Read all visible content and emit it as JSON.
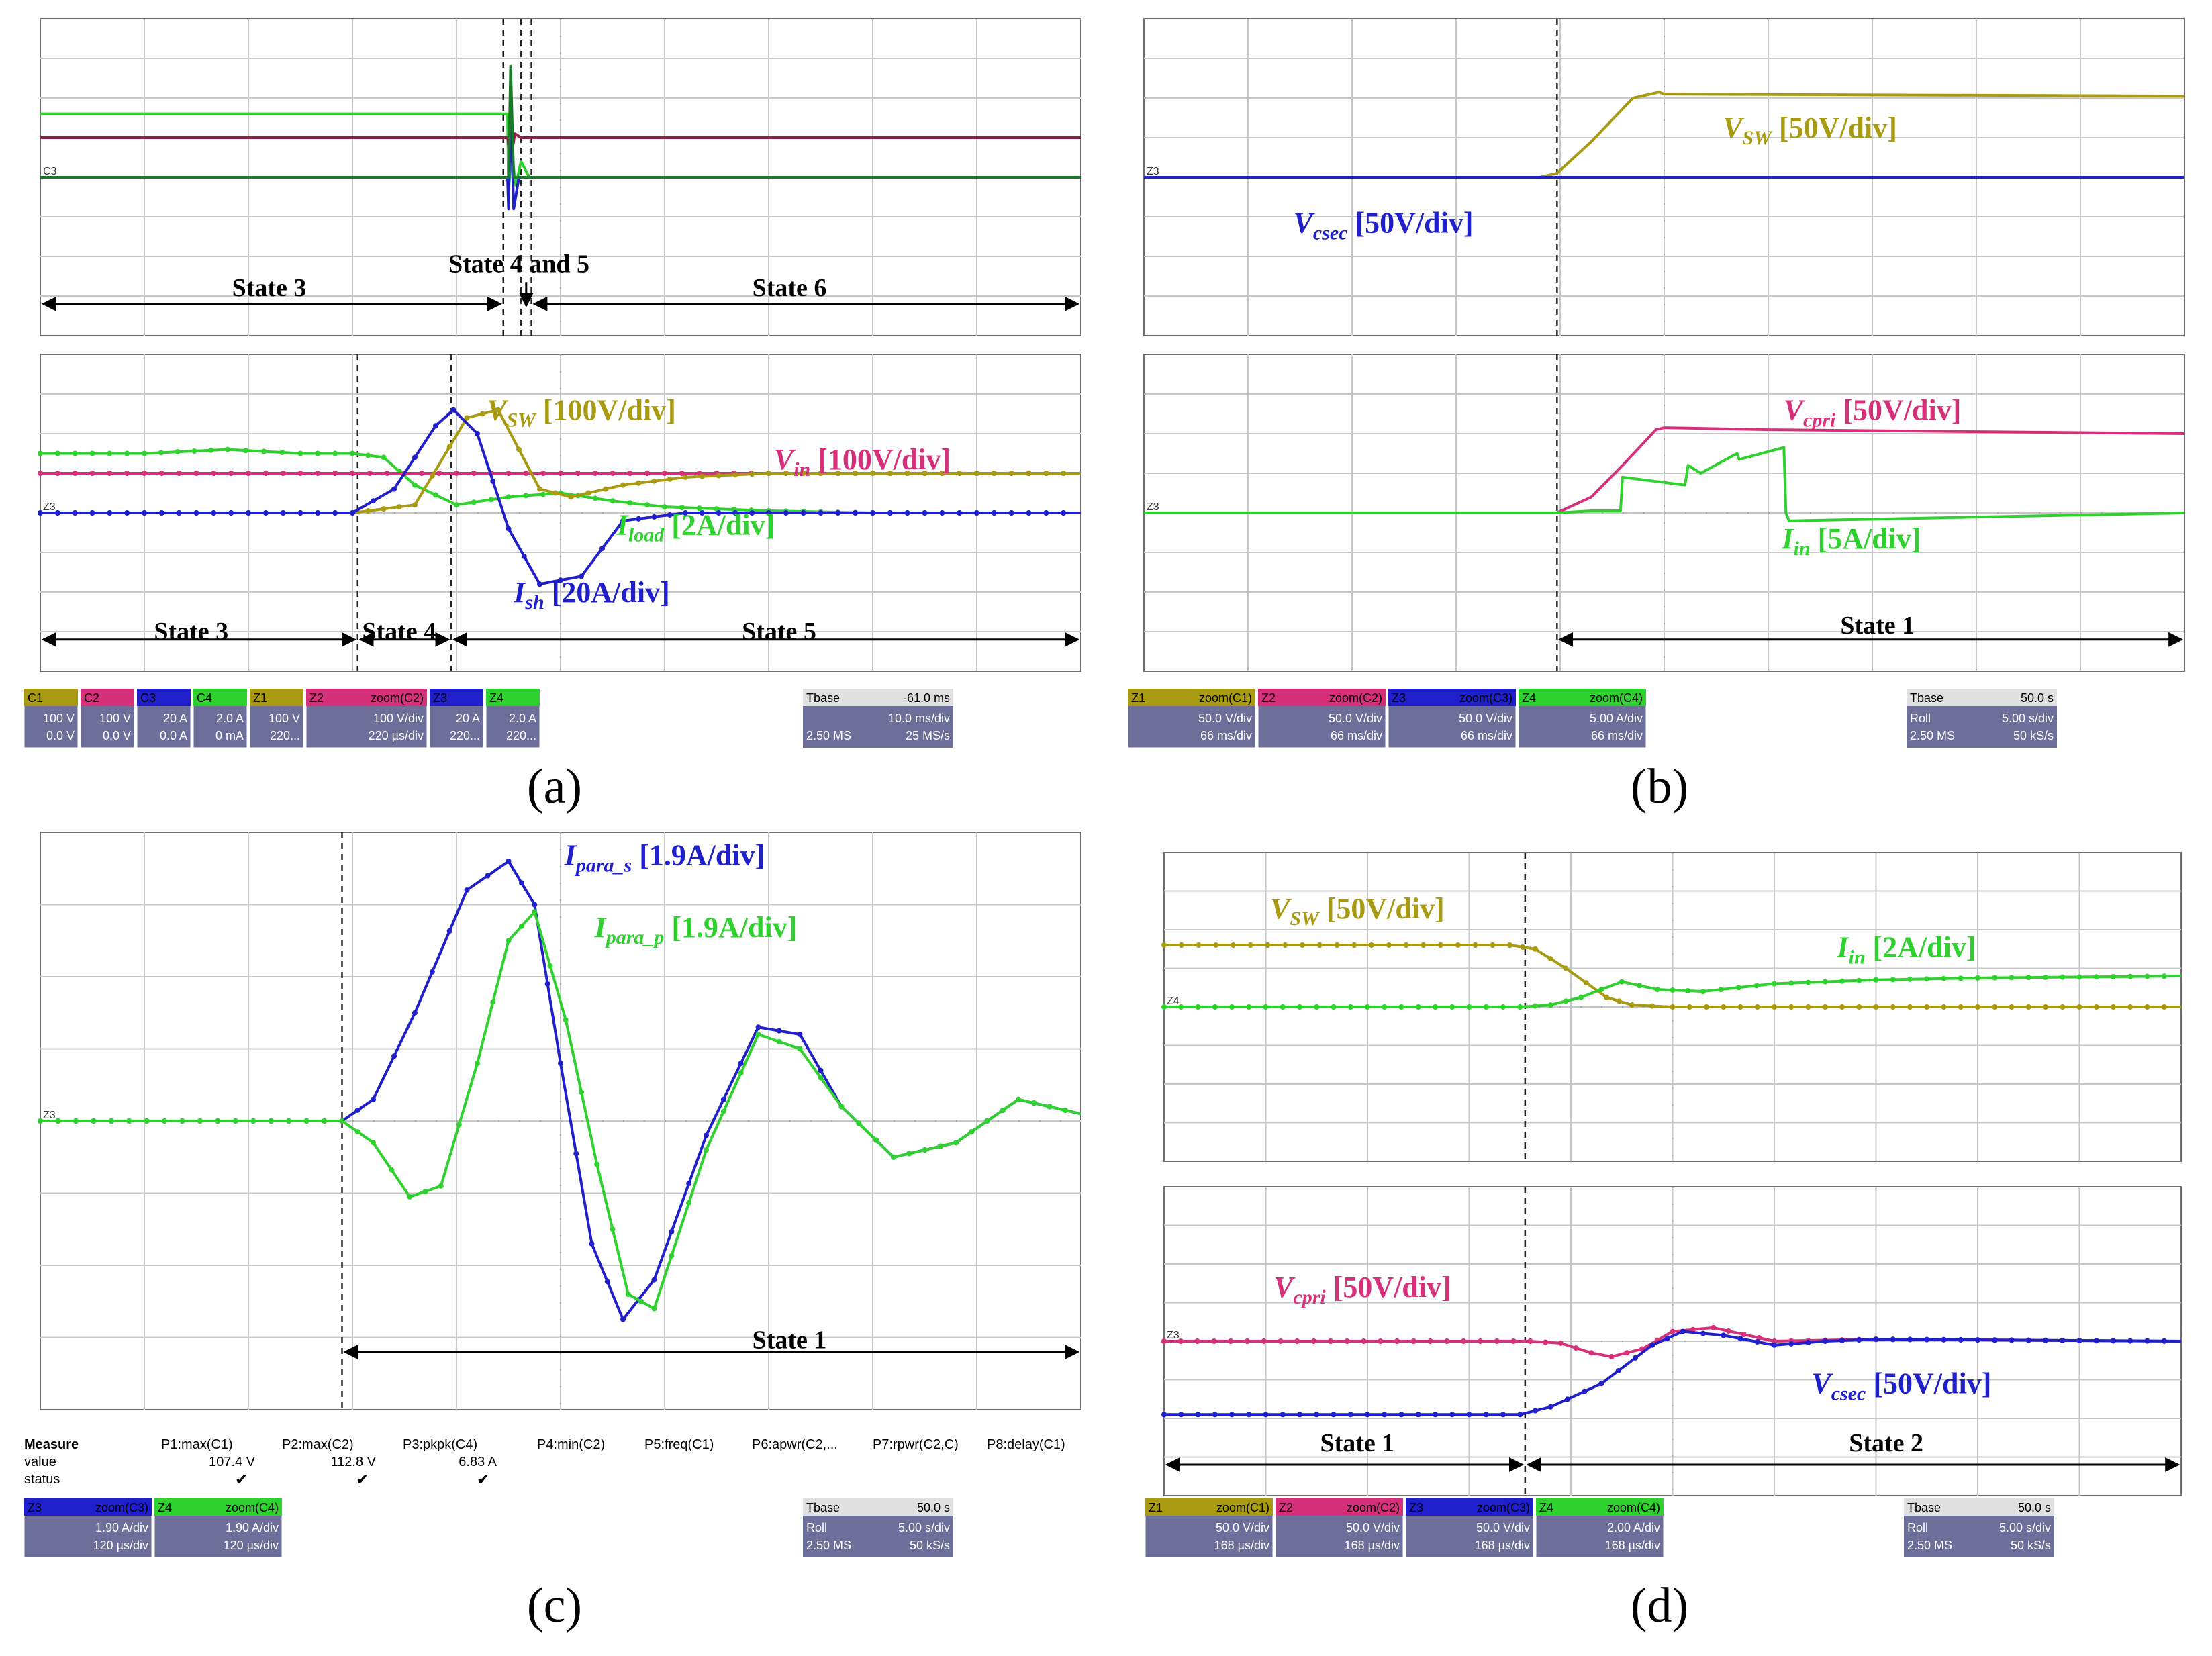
{
  "figure": {
    "captions": [
      "(a)",
      "(b)",
      "(c)",
      "(d)"
    ]
  },
  "colors": {
    "olive": "#a89b12",
    "pink": "#d6307a",
    "navy": "#1f1fcc",
    "green": "#2ed12e",
    "maroon": "#8b2244",
    "darkgreen": "#1a7a2a",
    "grid": "#c7c7c7"
  },
  "chart_data": [
    {
      "id": "a_top",
      "panel": "a",
      "type": "line",
      "xlim": [
        0,
        10
      ],
      "ylim": [
        -4,
        4
      ],
      "series": [
        {
          "name": "green",
          "color": "#2ed12e",
          "x": [
            0,
            4.49,
            4.5,
            4.53,
            4.57,
            4.62,
            4.7,
            10
          ],
          "y": [
            1.6,
            1.6,
            -0.3,
            0.6,
            -0.2,
            0.4,
            0,
            0
          ]
        },
        {
          "name": "maroon",
          "color": "#8b2244",
          "x": [
            0,
            4.49,
            4.52,
            4.56,
            4.62,
            10
          ],
          "y": [
            1,
            1,
            0.4,
            1.1,
            1,
            1
          ]
        },
        {
          "name": "navy",
          "color": "#1f1fcc",
          "x": [
            0,
            4.49,
            4.5,
            4.52,
            4.55,
            4.6,
            10
          ],
          "y": [
            0,
            0,
            -0.8,
            2,
            -0.8,
            0,
            0
          ]
        },
        {
          "name": "darkgreen",
          "color": "#1a7a2a",
          "x": [
            0,
            4.5,
            4.52,
            4.55,
            10
          ],
          "y": [
            0,
            0,
            2.8,
            0,
            0
          ]
        }
      ],
      "vlines": [
        4.45,
        4.62,
        4.72
      ],
      "ground_label": "C3",
      "annotations": [
        {
          "text": "State 3",
          "x": 2.2,
          "y": -3
        },
        {
          "text": "State 4 and 5",
          "x": 4.6,
          "y": -2.4
        },
        {
          "text": "State 6",
          "x": 7.2,
          "y": -3
        }
      ],
      "state_arrows": [
        [
          0,
          4.45
        ],
        [
          4.72,
          10
        ]
      ]
    },
    {
      "id": "a_bot",
      "panel": "a",
      "type": "line",
      "xlim": [
        0,
        10
      ],
      "ylim": [
        -4,
        4
      ],
      "series": [
        {
          "name": "I_load",
          "color": "#2ed12e",
          "x": [
            0,
            1,
            1.8,
            2.5,
            3,
            3.3,
            3.6,
            4,
            4.5,
            5,
            5.5,
            6,
            7,
            8,
            10
          ],
          "y": [
            1.5,
            1.5,
            1.6,
            1.5,
            1.5,
            1.4,
            0.7,
            0.2,
            0.4,
            0.5,
            0.3,
            0.15,
            0.05,
            0,
            0
          ]
        },
        {
          "name": "V_in",
          "color": "#d6307a",
          "x": [
            0,
            10
          ],
          "y": [
            1,
            1
          ]
        },
        {
          "name": "V_SW",
          "color": "#a89b12",
          "x": [
            0,
            3,
            3.6,
            4.1,
            4.4,
            4.8,
            5.1,
            5.6,
            6.2,
            7,
            8,
            10
          ],
          "y": [
            0,
            0,
            0.2,
            2.4,
            2.6,
            0.6,
            0.4,
            0.7,
            0.9,
            1,
            1,
            1
          ]
        },
        {
          "name": "I_sh",
          "color": "#1f1fcc",
          "x": [
            0,
            3,
            3.4,
            3.8,
            3.97,
            4.2,
            4.5,
            4.8,
            5.2,
            5.6,
            6.2,
            7,
            10
          ],
          "y": [
            0,
            0,
            0.6,
            2.2,
            2.6,
            2,
            -0.4,
            -1.8,
            -1.6,
            -0.2,
            0,
            0,
            0
          ]
        }
      ],
      "vlines": [
        3.05,
        3.95
      ],
      "ground_label": "Z3",
      "annotations": [
        {
          "text": "V_SW [100V/div]",
          "main": "V",
          "sub": "SW",
          "rest": " [100V/div]",
          "color": "#a89b12",
          "x": 5.2,
          "y": 2.35
        },
        {
          "text": "V_in [100V/div]",
          "main": "V",
          "sub": "in",
          "rest": " [100V/div]",
          "color": "#d6307a",
          "x": 7.9,
          "y": 1.1
        },
        {
          "text": "I_load [2A/div]",
          "main": "I",
          "sub": "load",
          "rest": " [2A/div]",
          "color": "#2ed12e",
          "x": 6.3,
          "y": -0.55
        },
        {
          "text": "I_sh [20A/div]",
          "main": "I",
          "sub": "sh",
          "rest": " [20A/div]",
          "color": "#1f1fcc",
          "x": 5.3,
          "y": -2.25
        },
        {
          "text": "State 3",
          "x": 1.45,
          "y": -3.2
        },
        {
          "text": "State 4",
          "x": 3.45,
          "y": -3.2
        },
        {
          "text": "State 5",
          "x": 7.1,
          "y": -3.2
        }
      ],
      "state_arrows": [
        [
          0,
          3.05
        ],
        [
          3.05,
          3.95
        ],
        [
          3.95,
          10
        ]
      ]
    },
    {
      "id": "b_top",
      "panel": "b",
      "type": "line",
      "xlim": [
        0,
        10
      ],
      "ylim": [
        -4,
        4
      ],
      "series": [
        {
          "name": "V_SW",
          "color": "#a89b12",
          "x": [
            0,
            3.8,
            3.97,
            4.3,
            4.7,
            4.95,
            5,
            10
          ],
          "y": [
            0,
            0,
            0.1,
            0.9,
            2,
            2.15,
            2.1,
            2.05
          ]
        },
        {
          "name": "V_csec",
          "color": "#1f1fcc",
          "x": [
            0,
            10
          ],
          "y": [
            0,
            0
          ]
        }
      ],
      "vlines": [
        3.97
      ],
      "ground_label": "Z3",
      "annotations": [
        {
          "text": "V_SW [50V/div]",
          "main": "V",
          "sub": "SW",
          "rest": " [50V/div]",
          "color": "#a89b12",
          "x": 6.4,
          "y": 1
        },
        {
          "text": "V_csec [50V/div]",
          "main": "V",
          "sub": "csec",
          "rest": " [50V/div]",
          "color": "#1f1fcc",
          "x": 2.3,
          "y": -1.4
        }
      ],
      "state_arrows": []
    },
    {
      "id": "b_bot",
      "panel": "b",
      "type": "line",
      "xlim": [
        0,
        10
      ],
      "ylim": [
        -4,
        4
      ],
      "series": [
        {
          "name": "V_cpri",
          "color": "#d6307a",
          "x": [
            0,
            3.97,
            4.3,
            4.6,
            4.92,
            5,
            6,
            10
          ],
          "y": [
            0,
            0,
            0.4,
            1.2,
            2.1,
            2.15,
            2.1,
            2
          ]
        },
        {
          "name": "I_in",
          "color": "#2ed12e",
          "x": [
            0,
            3.97,
            4.3,
            4.58,
            4.6,
            5.2,
            5.23,
            5.35,
            5.7,
            5.72,
            6.15,
            6.17,
            6.2,
            10
          ],
          "y": [
            0,
            0,
            0.05,
            0.05,
            0.9,
            0.7,
            1.2,
            1,
            1.5,
            1.35,
            1.65,
            0,
            -0.2,
            0
          ]
        }
      ],
      "vlines": [
        3.97
      ],
      "ground_label": "Z3",
      "annotations": [
        {
          "text": "V_cpri [50V/div]",
          "main": "V",
          "sub": "cpri",
          "rest": " [50V/div]",
          "color": "#d6307a",
          "x": 7,
          "y": 2.35
        },
        {
          "text": "I_in [5A/div]",
          "main": "I",
          "sub": "in",
          "rest": " [5A/div]",
          "color": "#2ed12e",
          "x": 6.8,
          "y": -0.9
        },
        {
          "text": "State 1",
          "x": 7.05,
          "y": -3.05
        }
      ],
      "state_arrows": [
        [
          3.97,
          10
        ]
      ]
    },
    {
      "id": "c_main",
      "panel": "c",
      "type": "line",
      "xlim": [
        0,
        10
      ],
      "ylim": [
        -4,
        4
      ],
      "series": [
        {
          "name": "I_para_s",
          "color": "#1f1fcc",
          "x": [
            0,
            2.9,
            3.2,
            3.6,
            4.1,
            4.5,
            4.75,
            5.0,
            5.3,
            5.6,
            5.9,
            6.4,
            6.9,
            7.3,
            7.7,
            8.2,
            8.8,
            9.4,
            10
          ],
          "y": [
            0,
            0,
            0.3,
            1.5,
            3.2,
            3.6,
            3.0,
            0.8,
            -1.7,
            -2.75,
            -2.2,
            -0.2,
            1.3,
            1.2,
            0.2,
            -0.5,
            -0.3,
            0.3,
            0.1
          ]
        },
        {
          "name": "I_para_p",
          "color": "#2ed12e",
          "x": [
            0,
            2.9,
            3.2,
            3.55,
            3.85,
            4.2,
            4.5,
            4.75,
            5.05,
            5.35,
            5.65,
            5.9,
            6.4,
            6.9,
            7.3,
            7.7,
            8.2,
            8.8,
            9.4,
            10
          ],
          "y": [
            0,
            0,
            -0.3,
            -1.05,
            -0.9,
            0.8,
            2.5,
            2.9,
            1.4,
            -0.6,
            -2.4,
            -2.6,
            -0.4,
            1.2,
            1.0,
            0.2,
            -0.5,
            -0.3,
            0.3,
            0.1
          ]
        }
      ],
      "vlines": [
        2.9
      ],
      "ground_label": "Z3",
      "annotations": [
        {
          "text": "I_para_s [1.9A/div]",
          "main": "I",
          "sub": "para_s",
          "rest": " [1.9A/div]",
          "color": "#1f1fcc",
          "x": 6,
          "y": 3.55
        },
        {
          "text": "I_para_p [1.9A/div]",
          "main": "I",
          "sub": "para_p",
          "rest": " [1.9A/div]",
          "color": "#2ed12e",
          "x": 6.3,
          "y": 2.55
        },
        {
          "text": "State 1",
          "x": 7.2,
          "y": -3.15
        }
      ],
      "state_arrows": [
        [
          2.9,
          10
        ]
      ]
    },
    {
      "id": "d_top",
      "panel": "d",
      "type": "line",
      "xlim": [
        0,
        10
      ],
      "ylim": [
        -4,
        4
      ],
      "series": [
        {
          "name": "V_SW",
          "color": "#a89b12",
          "x": [
            0,
            3.4,
            3.65,
            3.95,
            4.35,
            4.6,
            5.0,
            10
          ],
          "y": [
            1.6,
            1.6,
            1.5,
            1.0,
            0.25,
            0.05,
            0,
            0
          ]
        },
        {
          "name": "I_in",
          "color": "#2ed12e",
          "x": [
            0,
            3.5,
            3.8,
            4.1,
            4.5,
            4.85,
            5.3,
            6,
            7,
            8,
            10
          ],
          "y": [
            0,
            0,
            0.05,
            0.25,
            0.65,
            0.45,
            0.4,
            0.6,
            0.7,
            0.75,
            0.8
          ]
        }
      ],
      "vlines": [
        3.55
      ],
      "ground_label": "Z4",
      "annotations": [
        {
          "text": "V_SW [50V/div]",
          "main": "V",
          "sub": "SW",
          "rest": " [50V/div]",
          "color": "#a89b12",
          "x": 1.9,
          "y": 2.3
        },
        {
          "text": "I_in [2A/div]",
          "main": "I",
          "sub": "in",
          "rest": " [2A/div]",
          "color": "#2ed12e",
          "x": 7.3,
          "y": 1.3
        }
      ],
      "state_arrows": []
    },
    {
      "id": "d_bot",
      "panel": "d",
      "type": "line",
      "xlim": [
        0,
        10
      ],
      "ylim": [
        -4,
        4
      ],
      "series": [
        {
          "name": "V_cpri",
          "color": "#d6307a",
          "x": [
            0,
            3.6,
            3.9,
            4.2,
            4.4,
            4.7,
            5.0,
            5.4,
            6,
            7,
            10
          ],
          "y": [
            0,
            0,
            -0.05,
            -0.3,
            -0.4,
            -0.2,
            0.25,
            0.35,
            0,
            0.05,
            0
          ]
        },
        {
          "name": "V_csec",
          "color": "#1f1fcc",
          "x": [
            0,
            3.5,
            3.8,
            4.3,
            4.8,
            5.1,
            5.5,
            6,
            6.5,
            7,
            10
          ],
          "y": [
            -1.9,
            -1.9,
            -1.7,
            -1.1,
            -0.1,
            0.25,
            0.15,
            -0.1,
            0,
            0.05,
            0
          ]
        }
      ],
      "vlines": [
        3.55
      ],
      "ground_label": "Z3",
      "annotations": [
        {
          "text": "V_cpri [50V/div]",
          "main": "V",
          "sub": "cpri",
          "rest": " [50V/div]",
          "color": "#d6307a",
          "x": 1.95,
          "y": 1.15
        },
        {
          "text": "V_csec [50V/div]",
          "main": "V",
          "sub": "csec",
          "rest": " [50V/div]",
          "color": "#1f1fcc",
          "x": 7.25,
          "y": -1.35
        },
        {
          "text": "State 1",
          "x": 1.9,
          "y": -2.85
        },
        {
          "text": "State 2",
          "x": 7.1,
          "y": -2.85
        }
      ],
      "state_arrows": [
        [
          0,
          3.55
        ],
        [
          3.55,
          10
        ]
      ]
    }
  ],
  "info_bars": [
    {
      "panel": "a",
      "channels": [
        {
          "name": "C1",
          "l1": "100 V",
          "l2": "0.0 V"
        },
        {
          "name": "C2",
          "l1": "100 V",
          "l2": "0.0 V"
        },
        {
          "name": "C3",
          "l1": "20 A",
          "l2": "0.0 A"
        },
        {
          "name": "C4",
          "l1": "2.0 A",
          "l2": "0 mA"
        },
        {
          "name": "Z1",
          "l1": "100 V",
          "l2": "220..."
        },
        {
          "name": "Z2",
          "tag": "zoom(C2)",
          "l1": "100 V/div",
          "l2": "220 µs/div"
        },
        {
          "name": "Z3",
          "l1": "20 A",
          "l2": "220..."
        },
        {
          "name": "Z4",
          "l1": "2.0 A",
          "l2": "220..."
        }
      ],
      "tbase": {
        "title": "Tbase",
        "v1": "-61.0 ms",
        "mode": "",
        "v2": "10.0 ms/div",
        "rate1": "2.50 MS",
        "rate2": "25 MS/s"
      }
    },
    {
      "panel": "b",
      "channels": [
        {
          "name": "Z1",
          "tag": "zoom(C1)",
          "l1": "50.0 V/div",
          "l2": "66 ms/div"
        },
        {
          "name": "Z2",
          "tag": "zoom(C2)",
          "l1": "50.0 V/div",
          "l2": "66 ms/div"
        },
        {
          "name": "Z3",
          "tag": "zoom(C3)",
          "l1": "50.0 V/div",
          "l2": "66 ms/div"
        },
        {
          "name": "Z4",
          "tag": "zoom(C4)",
          "l1": "5.00 A/div",
          "l2": "66 ms/div"
        }
      ],
      "tbase": {
        "title": "Tbase",
        "v1": "50.0 s",
        "mode": "Roll",
        "v2": "5.00 s/div",
        "rate1": "2.50 MS",
        "rate2": "50 kS/s"
      }
    },
    {
      "panel": "c",
      "channels": [
        {
          "name": "Z3",
          "tag": "zoom(C3)",
          "l1": "1.90 A/div",
          "l2": "120 µs/div"
        },
        {
          "name": "Z4",
          "tag": "zoom(C4)",
          "l1": "1.90 A/div",
          "l2": "120 µs/div"
        }
      ],
      "tbase": {
        "title": "Tbase",
        "v1": "50.0 s",
        "mode": "Roll",
        "v2": "5.00 s/div",
        "rate1": "2.50 MS",
        "rate2": "50 kS/s"
      }
    },
    {
      "panel": "d",
      "channels": [
        {
          "name": "Z1",
          "tag": "zoom(C1)",
          "l1": "50.0 V/div",
          "l2": "168 µs/div"
        },
        {
          "name": "Z2",
          "tag": "zoom(C2)",
          "l1": "50.0 V/div",
          "l2": "168 µs/div"
        },
        {
          "name": "Z3",
          "tag": "zoom(C3)",
          "l1": "50.0 V/div",
          "l2": "168 µs/div"
        },
        {
          "name": "Z4",
          "tag": "zoom(C4)",
          "l1": "2.00 A/div",
          "l2": "168 µs/div"
        }
      ],
      "tbase": {
        "title": "Tbase",
        "v1": "50.0 s",
        "mode": "Roll",
        "v2": "5.00 s/div",
        "rate1": "2.50 MS",
        "rate2": "50 kS/s"
      }
    }
  ],
  "measure": {
    "headers": [
      "Measure",
      "P1:max(C1)",
      "P2:max(C2)",
      "P3:pkpk(C4)",
      "P4:min(C2)",
      "P5:freq(C1)",
      "P6:apwr(C2,...",
      "P7:rpwr(C2,C)",
      "P8:delay(C1)"
    ],
    "value_label": "value",
    "values": [
      "107.4 V",
      "112.8 V",
      "6.83 A"
    ],
    "status_label": "status",
    "status": [
      "✔",
      "✔",
      "✔"
    ]
  }
}
